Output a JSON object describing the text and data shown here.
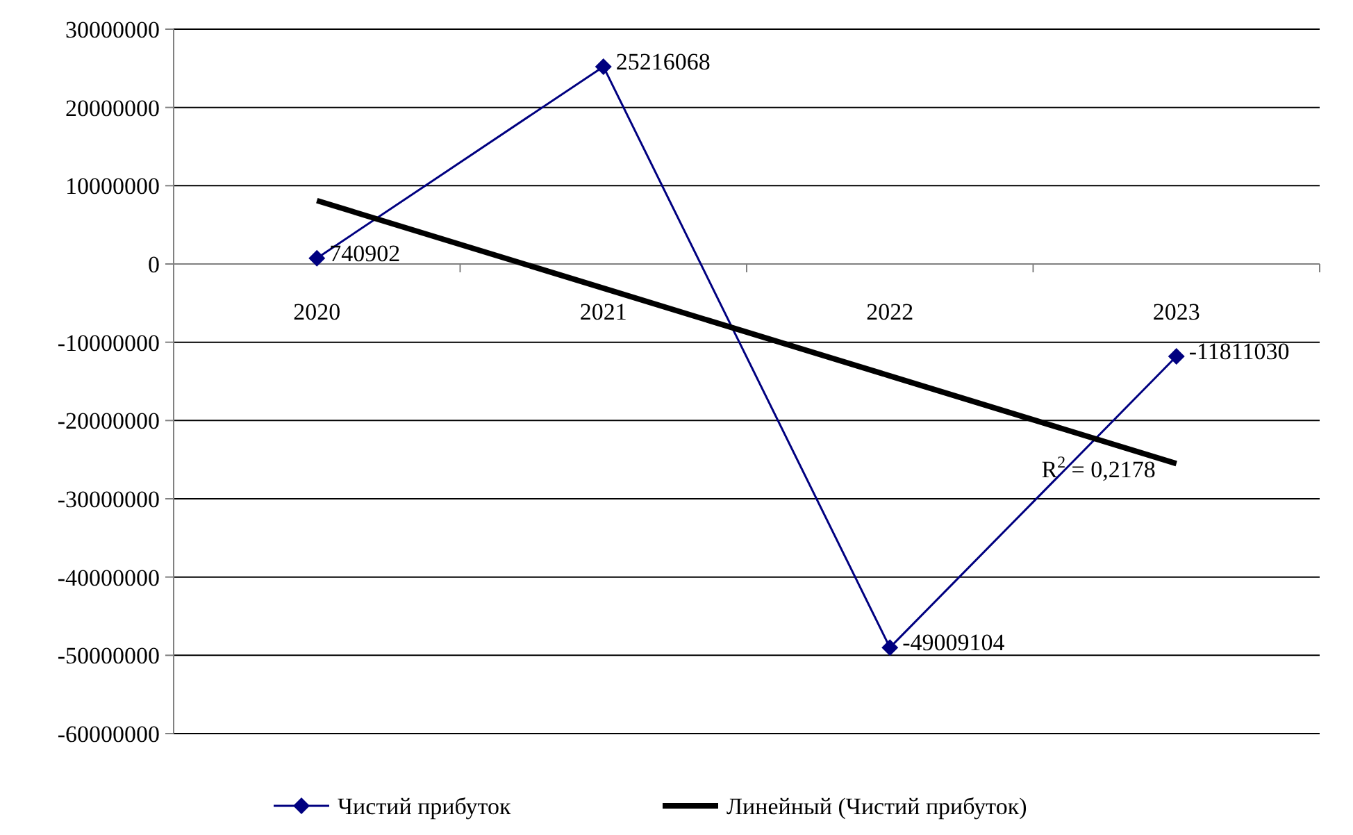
{
  "chart_data": {
    "type": "line",
    "categories": [
      "2020",
      "2021",
      "2022",
      "2023"
    ],
    "series": [
      {
        "name": "Чистий прибуток",
        "color": "#000080",
        "values": [
          740902,
          25216068,
          -49009104,
          -11811030
        ],
        "value_labels": [
          "740902",
          "25216068",
          "-49009104",
          "-11811030"
        ],
        "marker": "diamond"
      },
      {
        "name": "Линейный (Чистий прибуток)",
        "color": "#000000",
        "values": [
          8100000,
          -3100000,
          -14300000,
          -25500000
        ],
        "marker": "none"
      }
    ],
    "ylim": [
      -60000000,
      30000000
    ],
    "yticks": [
      -60000000,
      -50000000,
      -40000000,
      -30000000,
      -20000000,
      -10000000,
      0,
      10000000,
      20000000,
      30000000
    ],
    "grid": "y",
    "legend": "bottom",
    "line_style": "solid",
    "annotations": [
      {
        "text": "R$^{2}$ = 0,2178",
        "x": "2023",
        "y": -25500000
      }
    ]
  }
}
